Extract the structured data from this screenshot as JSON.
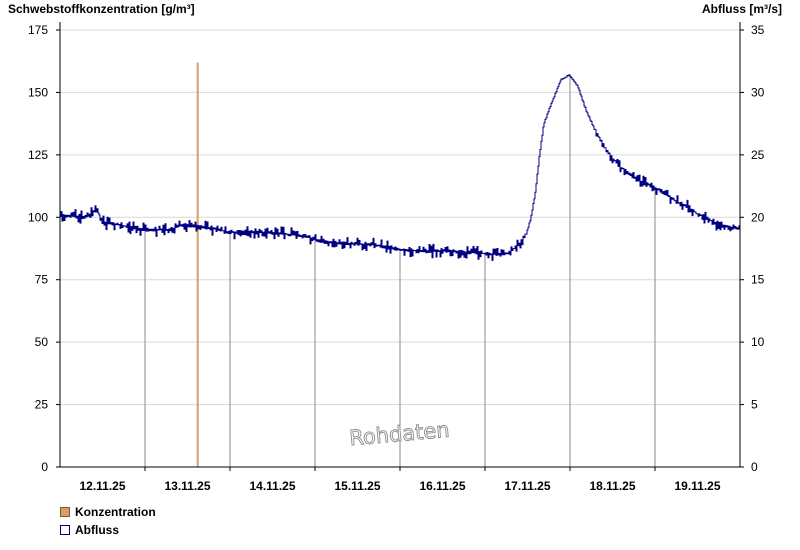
{
  "chart_data": {
    "type": "line",
    "left_axis": {
      "label": "Schwebstoffkonzentration [g/m³]",
      "range": [
        0,
        175
      ],
      "ticks": [
        "0",
        "25",
        "50",
        "75",
        "100",
        "125",
        "150",
        "175"
      ]
    },
    "right_axis": {
      "label": "Abfluss [m³/s]",
      "range": [
        0,
        35
      ],
      "ticks": [
        "0",
        "5",
        "10",
        "15",
        "20",
        "25",
        "30",
        "35"
      ]
    },
    "x_range": [
      0,
      8
    ],
    "x_labels": [
      "12.11.25",
      "13.11.25",
      "14.11.25",
      "15.11.25",
      "16.11.25",
      "17.11.25",
      "18.11.25",
      "19.11.25"
    ],
    "grid": true,
    "watermark": "Rohdaten",
    "series": [
      {
        "name": "Konzentration",
        "axis": "left",
        "color": "#d9a066",
        "style": "bar",
        "points": [
          [
            1.62,
            162
          ]
        ]
      },
      {
        "name": "Abfluss",
        "axis": "right",
        "color": "#000080",
        "style": "line",
        "points": [
          [
            0.0,
            20.2
          ],
          [
            0.3,
            20.0
          ],
          [
            0.45,
            20.6
          ],
          [
            0.5,
            19.6
          ],
          [
            0.7,
            19.4
          ],
          [
            0.9,
            19.1
          ],
          [
            1.0,
            19.0
          ],
          [
            1.3,
            19.0
          ],
          [
            1.45,
            19.4
          ],
          [
            1.6,
            19.3
          ],
          [
            1.8,
            19.1
          ],
          [
            2.0,
            18.8
          ],
          [
            2.3,
            18.8
          ],
          [
            2.6,
            18.7
          ],
          [
            2.9,
            18.5
          ],
          [
            3.1,
            18.0
          ],
          [
            3.4,
            17.9
          ],
          [
            3.7,
            17.8
          ],
          [
            4.0,
            17.4
          ],
          [
            4.3,
            17.3
          ],
          [
            4.5,
            17.3
          ],
          [
            4.8,
            17.2
          ],
          [
            5.0,
            17.1
          ],
          [
            5.2,
            17.0
          ],
          [
            5.3,
            17.2
          ],
          [
            5.4,
            17.8
          ],
          [
            5.5,
            18.8
          ],
          [
            5.55,
            20.0
          ],
          [
            5.6,
            22.0
          ],
          [
            5.65,
            25.0
          ],
          [
            5.7,
            27.5
          ],
          [
            5.8,
            29.3
          ],
          [
            5.9,
            31.0
          ],
          [
            6.0,
            31.4
          ],
          [
            6.1,
            30.5
          ],
          [
            6.2,
            28.5
          ],
          [
            6.3,
            27.0
          ],
          [
            6.4,
            25.8
          ],
          [
            6.5,
            24.8
          ],
          [
            6.6,
            24.0
          ],
          [
            6.7,
            23.5
          ],
          [
            6.8,
            23.0
          ],
          [
            6.9,
            22.7
          ],
          [
            7.0,
            22.4
          ],
          [
            7.1,
            22.0
          ],
          [
            7.2,
            21.5
          ],
          [
            7.3,
            21.1
          ],
          [
            7.4,
            20.8
          ],
          [
            7.5,
            20.3
          ],
          [
            7.6,
            20.0
          ],
          [
            7.7,
            19.6
          ],
          [
            7.8,
            19.3
          ],
          [
            7.9,
            19.2
          ],
          [
            8.0,
            19.1
          ]
        ]
      }
    ]
  }
}
